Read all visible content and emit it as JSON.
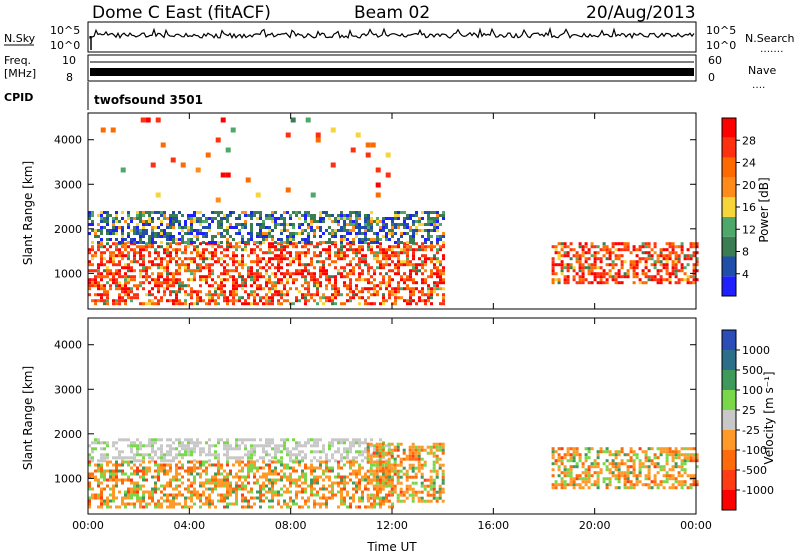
{
  "header": {
    "title": "Dome C East (fitACF)",
    "beam": "Beam 02",
    "date": "20/Aug/2013"
  },
  "nsky_panel": {
    "left_label": "N.Sky",
    "left_ticks": [
      "10^5",
      "10^0"
    ],
    "right_label": "N.Search",
    "right_ticks": [
      "10^5",
      "10^0"
    ],
    "right_dots": "․․․․․․․"
  },
  "freq_panel": {
    "left_label": "Freq.",
    "unit_label": "[MHz]",
    "left_ticks": [
      "10",
      "8"
    ],
    "right_label": "Nave",
    "right_ticks": [
      "60",
      "0"
    ],
    "right_dots": "․․․․"
  },
  "cpid": {
    "label": "CPID",
    "text": "twofsound 3501"
  },
  "colors": {
    "power_scale": [
      "#2020ff",
      "#1f4fa8",
      "#3a7d52",
      "#4ea86a",
      "#f5d53a",
      "#ff8c1a",
      "#ff6a00",
      "#ff3010",
      "#ff0000"
    ],
    "velocity_scale": [
      "#ff0000",
      "#ff3c14",
      "#ff6a0a",
      "#ff9a28",
      "#c8c8c8",
      "#78d84a",
      "#3e9a5a",
      "#2d6f8a",
      "#2a4db8"
    ]
  },
  "chart_data": [
    {
      "type": "heatmap",
      "name": "power-panel",
      "xlabel": "",
      "ylabel": "Slant Range [km]",
      "x_ticks": [
        "00:00",
        "04:00",
        "08:00",
        "12:00",
        "16:00",
        "20:00",
        "00:00"
      ],
      "xlim": [
        0,
        24
      ],
      "ylim": [
        200,
        4600
      ],
      "y_ticks": [
        1000,
        2000,
        3000,
        4000
      ],
      "colorbar": {
        "label": "Power [dB]",
        "ticks": [
          "28",
          "24",
          "20",
          "16",
          "12",
          "8",
          "4"
        ]
      },
      "echo_regions": [
        {
          "t0": 0.0,
          "t1": 14.0,
          "r0": 350,
          "r1": 1700,
          "dominant": "red/orange"
        },
        {
          "t0": 18.3,
          "t1": 24.0,
          "r0": 800,
          "r1": 1700,
          "dominant": "red/orange"
        },
        {
          "t0": 0.0,
          "t1": 14.0,
          "r0": 1700,
          "r1": 2400,
          "dominant": "green/blue"
        },
        {
          "t0": 0.5,
          "t1": 12.0,
          "r0": 2600,
          "r1": 4500,
          "dominant": "scattered blue/green"
        }
      ]
    },
    {
      "type": "heatmap",
      "name": "velocity-panel",
      "xlabel": "Time UT",
      "ylabel": "Slant Range [km]",
      "x_ticks": [
        "00:00",
        "04:00",
        "08:00",
        "12:00",
        "16:00",
        "20:00",
        "00:00"
      ],
      "xlim": [
        0,
        24
      ],
      "ylim": [
        200,
        4600
      ],
      "y_ticks": [
        1000,
        2000,
        3000,
        4000
      ],
      "colorbar": {
        "label": "Velocity [m s⁻¹]",
        "ticks": [
          "1000",
          "500",
          "100",
          "25",
          "-25",
          "-100",
          "-500",
          "-1000"
        ]
      },
      "echo_regions": [
        {
          "t0": 0.0,
          "t1": 12.0,
          "r0": 1400,
          "r1": 1900,
          "dominant": "grey (|v|<25)"
        },
        {
          "t0": 0.0,
          "t1": 12.0,
          "r0": 350,
          "r1": 1400,
          "dominant": "orange/green"
        },
        {
          "t0": 11.0,
          "t1": 14.0,
          "r0": 500,
          "r1": 1800,
          "dominant": "orange/green"
        },
        {
          "t0": 18.3,
          "t1": 24.0,
          "r0": 800,
          "r1": 1700,
          "dominant": "green/orange"
        }
      ]
    }
  ]
}
